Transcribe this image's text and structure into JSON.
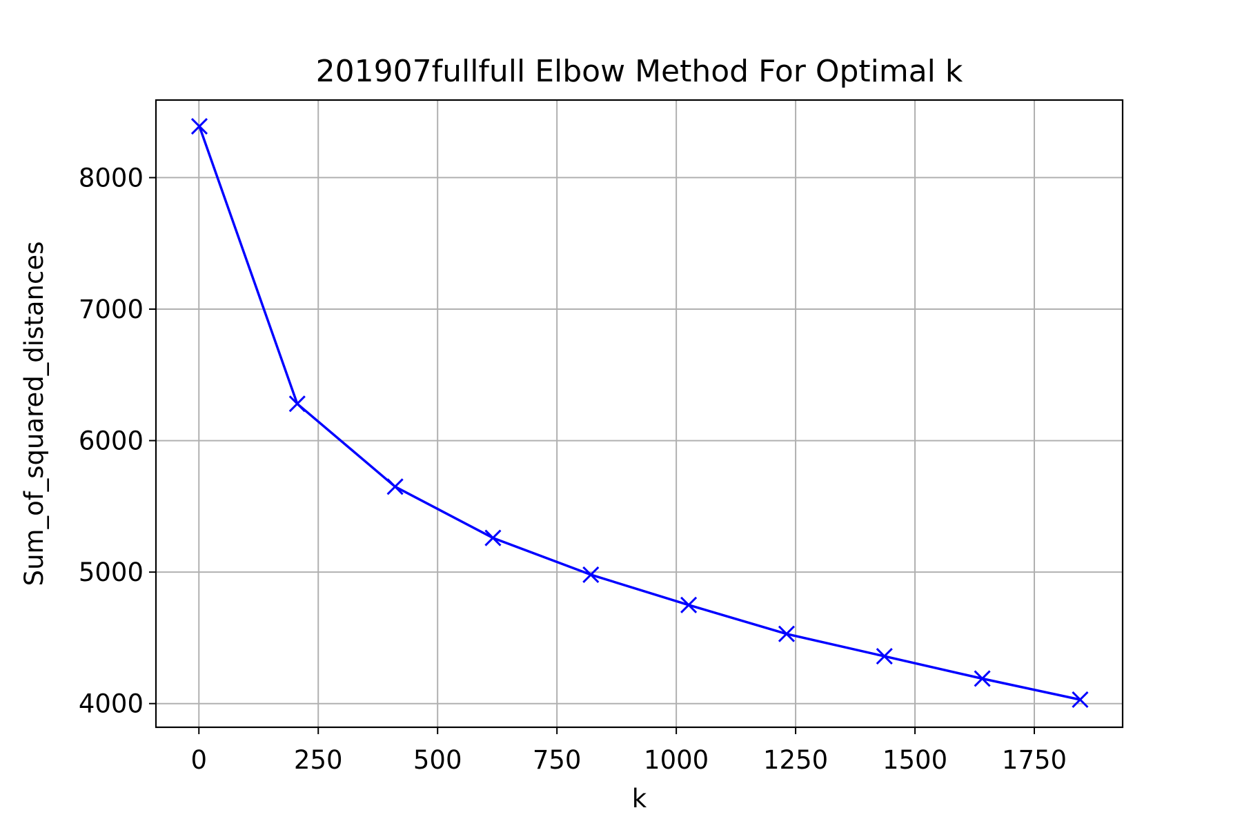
{
  "chart_data": {
    "type": "line",
    "title": "201907fullfull Elbow Method For Optimal k",
    "xlabel": "k",
    "ylabel": "Sum_of_squared_distances",
    "xlim": [
      -90,
      1935
    ],
    "ylim": [
      3820,
      8590
    ],
    "xticks": [
      0,
      250,
      500,
      750,
      1000,
      1250,
      1500,
      1750
    ],
    "xtick_labels": [
      "0",
      "250",
      "500",
      "750",
      "1000",
      "1250",
      "1500",
      "1750"
    ],
    "yticks": [
      4000,
      5000,
      6000,
      7000,
      8000
    ],
    "ytick_labels": [
      "4000",
      "5000",
      "6000",
      "7000",
      "8000"
    ],
    "grid": true,
    "series": [
      {
        "color": "#0000ff",
        "marker": "x",
        "x": [
          1,
          206,
          411,
          616,
          821,
          1026,
          1231,
          1436,
          1641,
          1846
        ],
        "y": [
          8390,
          6280,
          5650,
          5260,
          4980,
          4750,
          4530,
          4360,
          4190,
          4030
        ]
      }
    ]
  },
  "colors": {
    "line": "#0000ff",
    "grid": "#b0b0b0",
    "axes": "#000000"
  }
}
